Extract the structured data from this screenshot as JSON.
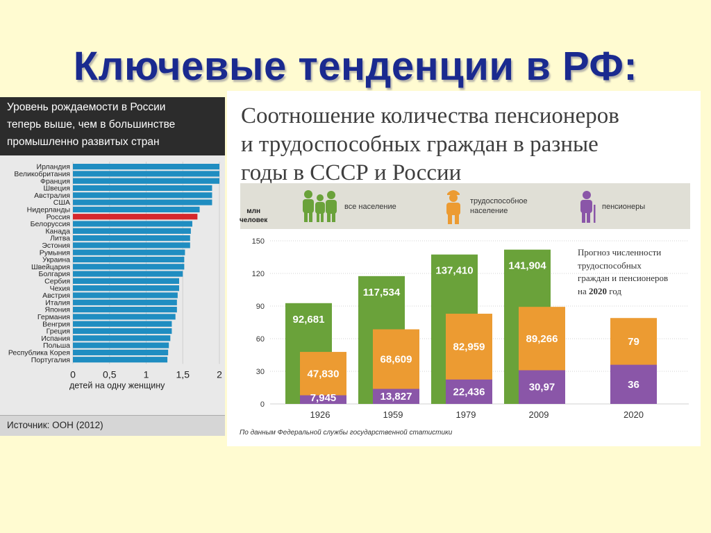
{
  "slide": {
    "title": "Ключевые тенденции в РФ:"
  },
  "left": {
    "header_lines": [
      "Уровень рождаемости в России",
      "теперь выше, чем в большинстве",
      "промышленно развитых стран"
    ],
    "source": "Источник: ООН (2012)",
    "colors": {
      "bar": "#1f8dc1",
      "highlight": "#d6282c"
    }
  },
  "right": {
    "title_lines": [
      "Соотношение количества пенсионеров",
      "и трудоспособных граждан в разные",
      "годы в СССР и России"
    ],
    "unit_lines": [
      "млн",
      "человек"
    ],
    "legend": {
      "all": "все население",
      "working_lines": [
        "трудоспособное",
        "население"
      ],
      "pensioners": "пенсионеры"
    },
    "forecast_note_lines": [
      "Прогноз численности",
      "трудоспособных",
      "граждан и пенсионеров",
      "на"
    ],
    "forecast_year_bold": "2020",
    "forecast_year_suffix": "год",
    "footnote": "По данным Федеральной службы государственной статистики",
    "colors": {
      "all": "#6aa23a",
      "working": "#ec9b32",
      "pensioners": "#8a56a8"
    }
  },
  "chart_data": [
    {
      "type": "bar",
      "orientation": "horizontal",
      "categories": [
        "Ирландия",
        "Великобритания",
        "Франция",
        "Швеция",
        "Австралия",
        "США",
        "Нидерланды",
        "Россия",
        "Белоруссия",
        "Канада",
        "Литва",
        "Эстония",
        "Румыния",
        "Украина",
        "Швейцария",
        "Болгария",
        "Сербия",
        "Чехия",
        "Австрия",
        "Италия",
        "Япония",
        "Германия",
        "Венгрия",
        "Греция",
        "Испания",
        "Польша",
        "Республика Корея",
        "Португалия"
      ],
      "values": [
        2.0,
        2.0,
        2.0,
        1.9,
        1.9,
        1.9,
        1.73,
        1.7,
        1.63,
        1.61,
        1.6,
        1.6,
        1.53,
        1.52,
        1.52,
        1.5,
        1.45,
        1.45,
        1.43,
        1.42,
        1.42,
        1.4,
        1.35,
        1.35,
        1.33,
        1.31,
        1.3,
        1.29
      ],
      "highlight": "Россия",
      "xlabel": "детей на одну женщину",
      "ticks": [
        0,
        0.5,
        1,
        1.5,
        2
      ],
      "tick_labels": [
        "0",
        "0,5",
        "1",
        "1,5",
        "2"
      ],
      "xlim": [
        0,
        2
      ]
    },
    {
      "type": "bar",
      "categories": [
        "1926",
        "1959",
        "1979",
        "2009",
        "2020"
      ],
      "series": [
        {
          "name": "все население",
          "values": [
            92.681,
            117.534,
            137.41,
            141.904,
            null
          ],
          "labels": [
            "92,681",
            "117,534",
            "137,410",
            "141,904",
            ""
          ]
        },
        {
          "name": "трудоспособное население",
          "values": [
            47.83,
            68.609,
            82.959,
            89.266,
            79
          ],
          "labels": [
            "47,830",
            "68,609",
            "82,959",
            "89,266",
            "79"
          ]
        },
        {
          "name": "пенсионеры",
          "values": [
            7.945,
            13.827,
            22.436,
            30.97,
            36
          ],
          "labels": [
            "7,945",
            "13,827",
            "22,436",
            "30,97",
            "36"
          ]
        }
      ],
      "yticks": [
        0,
        30,
        60,
        90,
        120,
        150
      ],
      "ylim": [
        0,
        150
      ],
      "grid": true
    }
  ]
}
